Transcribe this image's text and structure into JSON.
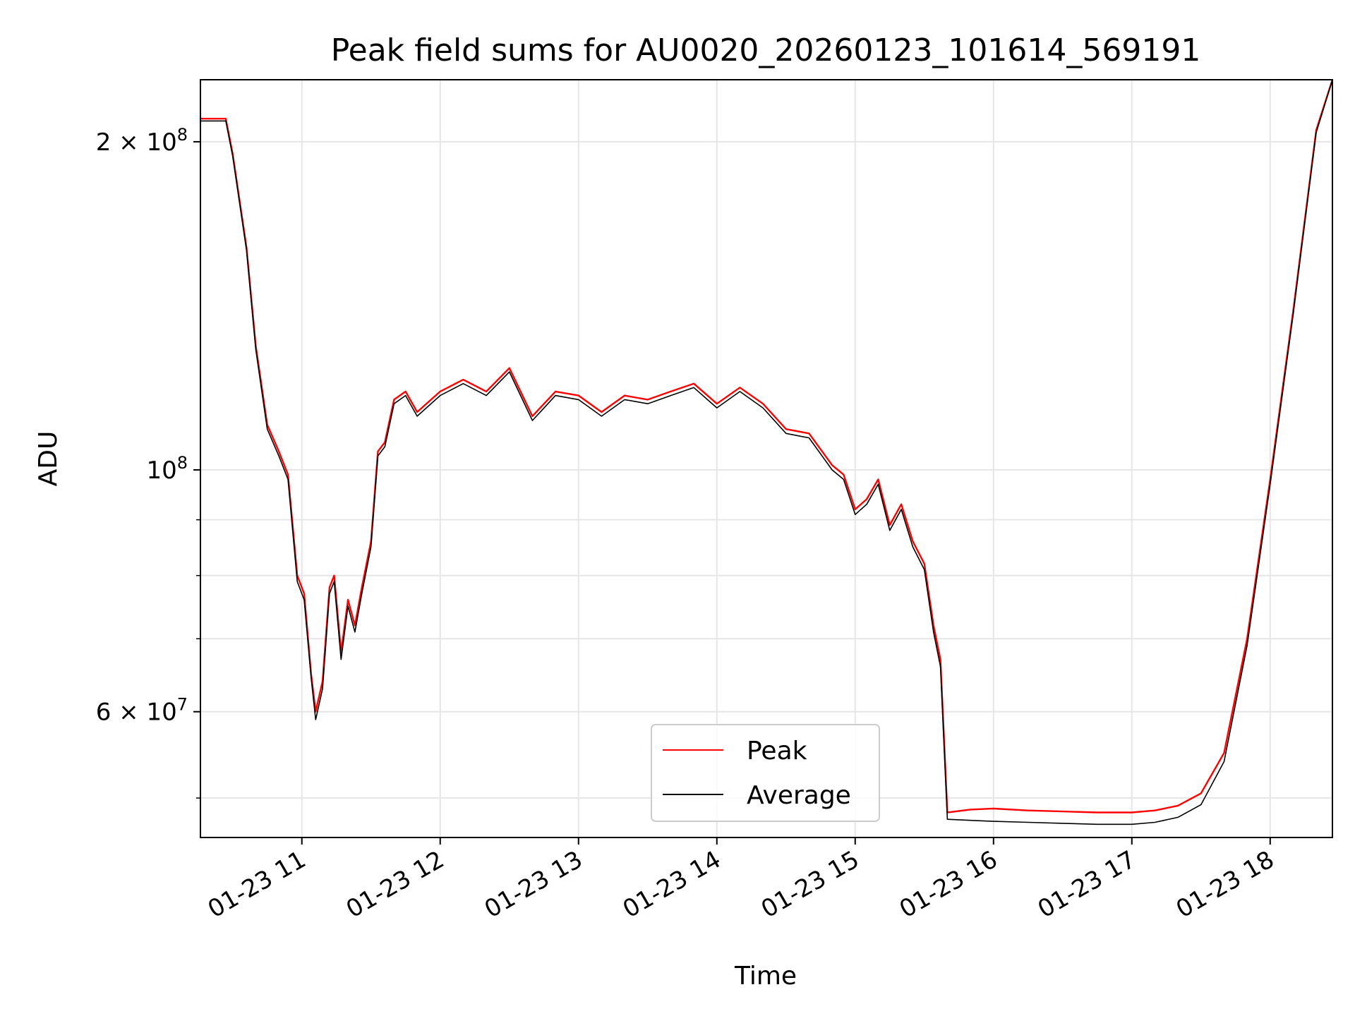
{
  "chart_data": {
    "type": "line",
    "title": "Peak field sums for AU0020_20260123_101614_569191",
    "xlabel": "Time",
    "ylabel": "ADU",
    "yscale": "log",
    "ylim": [
      46000000,
      228000000
    ],
    "xlim": [
      "2026-01-23 10:16",
      "2026-01-23 18:27"
    ],
    "grid": true,
    "legend_position": "bottom-center",
    "x_tick_labels": [
      "01-23 11",
      "01-23 12",
      "01-23 13",
      "01-23 14",
      "01-23 15",
      "01-23 16",
      "01-23 17",
      "01-23 18"
    ],
    "y_tick_labels": [
      {
        "value": 200000000,
        "mantissa": "2",
        "exponent": "8"
      },
      {
        "value": 100000000,
        "mantissa": "",
        "exponent": "8"
      },
      {
        "value": 60000000,
        "mantissa": "6",
        "exponent": "7"
      }
    ],
    "y_minor_ticks": [
      50000000,
      70000000,
      80000000,
      90000000
    ],
    "series": [
      {
        "name": "Peak",
        "color": "#ff0000",
        "x": [
          "2026-01-23 10:16",
          "2026-01-23 10:27",
          "2026-01-23 10:30",
          "2026-01-23 10:36",
          "2026-01-23 10:40",
          "2026-01-23 10:45",
          "2026-01-23 10:50",
          "2026-01-23 10:54",
          "2026-01-23 10:58",
          "2026-01-23 11:01",
          "2026-01-23 11:04",
          "2026-01-23 11:06",
          "2026-01-23 11:09",
          "2026-01-23 11:12",
          "2026-01-23 11:14",
          "2026-01-23 11:17",
          "2026-01-23 11:20",
          "2026-01-23 11:23",
          "2026-01-23 11:26",
          "2026-01-23 11:30",
          "2026-01-23 11:33",
          "2026-01-23 11:36",
          "2026-01-23 11:40",
          "2026-01-23 11:45",
          "2026-01-23 11:50",
          "2026-01-23 12:00",
          "2026-01-23 12:10",
          "2026-01-23 12:20",
          "2026-01-23 12:30",
          "2026-01-23 12:40",
          "2026-01-23 12:50",
          "2026-01-23 13:00",
          "2026-01-23 13:10",
          "2026-01-23 13:20",
          "2026-01-23 13:30",
          "2026-01-23 13:40",
          "2026-01-23 13:50",
          "2026-01-23 14:00",
          "2026-01-23 14:10",
          "2026-01-23 14:20",
          "2026-01-23 14:30",
          "2026-01-23 14:40",
          "2026-01-23 14:50",
          "2026-01-23 14:55",
          "2026-01-23 15:00",
          "2026-01-23 15:05",
          "2026-01-23 15:10",
          "2026-01-23 15:15",
          "2026-01-23 15:20",
          "2026-01-23 15:25",
          "2026-01-23 15:30",
          "2026-01-23 15:34",
          "2026-01-23 15:37",
          "2026-01-23 15:40",
          "2026-01-23 15:50",
          "2026-01-23 16:00",
          "2026-01-23 16:15",
          "2026-01-23 16:30",
          "2026-01-23 16:45",
          "2026-01-23 17:00",
          "2026-01-23 17:10",
          "2026-01-23 17:20",
          "2026-01-23 17:30",
          "2026-01-23 17:40",
          "2026-01-23 17:50",
          "2026-01-23 18:00",
          "2026-01-23 18:10",
          "2026-01-23 18:20",
          "2026-01-23 18:27"
        ],
        "y": [
          210000000,
          210000000,
          195000000,
          160000000,
          130000000,
          110000000,
          104000000,
          99000000,
          80000000,
          77000000,
          65000000,
          60000000,
          64000000,
          78000000,
          80000000,
          68000000,
          76000000,
          72000000,
          78000000,
          86000000,
          104000000,
          106000000,
          116000000,
          118000000,
          113000000,
          118000000,
          121000000,
          118000000,
          124000000,
          112000000,
          118000000,
          117000000,
          113000000,
          117000000,
          116000000,
          118000000,
          120000000,
          115000000,
          119000000,
          115000000,
          109000000,
          108000000,
          101000000,
          99000000,
          92000000,
          94000000,
          98000000,
          89000000,
          93000000,
          86000000,
          82000000,
          72000000,
          67000000,
          48500000,
          48800000,
          48900000,
          48700000,
          48600000,
          48500000,
          48500000,
          48700000,
          49200000,
          50500000,
          55000000,
          70000000,
          98000000,
          140000000,
          205000000,
          228000000
        ]
      },
      {
        "name": "Average",
        "color": "#000000",
        "x": [
          "2026-01-23 10:16",
          "2026-01-23 10:27",
          "2026-01-23 10:30",
          "2026-01-23 10:36",
          "2026-01-23 10:40",
          "2026-01-23 10:45",
          "2026-01-23 10:50",
          "2026-01-23 10:54",
          "2026-01-23 10:58",
          "2026-01-23 11:01",
          "2026-01-23 11:04",
          "2026-01-23 11:06",
          "2026-01-23 11:09",
          "2026-01-23 11:12",
          "2026-01-23 11:14",
          "2026-01-23 11:17",
          "2026-01-23 11:20",
          "2026-01-23 11:23",
          "2026-01-23 11:26",
          "2026-01-23 11:30",
          "2026-01-23 11:33",
          "2026-01-23 11:36",
          "2026-01-23 11:40",
          "2026-01-23 11:45",
          "2026-01-23 11:50",
          "2026-01-23 12:00",
          "2026-01-23 12:10",
          "2026-01-23 12:20",
          "2026-01-23 12:30",
          "2026-01-23 12:40",
          "2026-01-23 12:50",
          "2026-01-23 13:00",
          "2026-01-23 13:10",
          "2026-01-23 13:20",
          "2026-01-23 13:30",
          "2026-01-23 13:40",
          "2026-01-23 13:50",
          "2026-01-23 14:00",
          "2026-01-23 14:10",
          "2026-01-23 14:20",
          "2026-01-23 14:30",
          "2026-01-23 14:40",
          "2026-01-23 14:50",
          "2026-01-23 14:55",
          "2026-01-23 15:00",
          "2026-01-23 15:05",
          "2026-01-23 15:10",
          "2026-01-23 15:15",
          "2026-01-23 15:20",
          "2026-01-23 15:25",
          "2026-01-23 15:30",
          "2026-01-23 15:34",
          "2026-01-23 15:37",
          "2026-01-23 15:40",
          "2026-01-23 15:50",
          "2026-01-23 16:00",
          "2026-01-23 16:15",
          "2026-01-23 16:30",
          "2026-01-23 16:45",
          "2026-01-23 17:00",
          "2026-01-23 17:10",
          "2026-01-23 17:20",
          "2026-01-23 17:30",
          "2026-01-23 17:40",
          "2026-01-23 17:50",
          "2026-01-23 18:00",
          "2026-01-23 18:10",
          "2026-01-23 18:20",
          "2026-01-23 18:27"
        ],
        "y": [
          209000000,
          209000000,
          194000000,
          159000000,
          129000000,
          109000000,
          103000000,
          98000000,
          79000000,
          76000000,
          64500000,
          59000000,
          63000000,
          77000000,
          79000000,
          67000000,
          75000000,
          71000000,
          77000000,
          85000000,
          103000000,
          105000000,
          115000000,
          117000000,
          112000000,
          117000000,
          120000000,
          117000000,
          123000000,
          111000000,
          117000000,
          116000000,
          112000000,
          116000000,
          115000000,
          117000000,
          119000000,
          114000000,
          118000000,
          114000000,
          108000000,
          107000000,
          100000000,
          98000000,
          91000000,
          93000000,
          97000000,
          88000000,
          92000000,
          85000000,
          81000000,
          71000000,
          66000000,
          47800000,
          47700000,
          47600000,
          47500000,
          47400000,
          47300000,
          47300000,
          47500000,
          48000000,
          49300000,
          54000000,
          69000000,
          97000000,
          139000000,
          204000000,
          228000000
        ]
      }
    ]
  }
}
